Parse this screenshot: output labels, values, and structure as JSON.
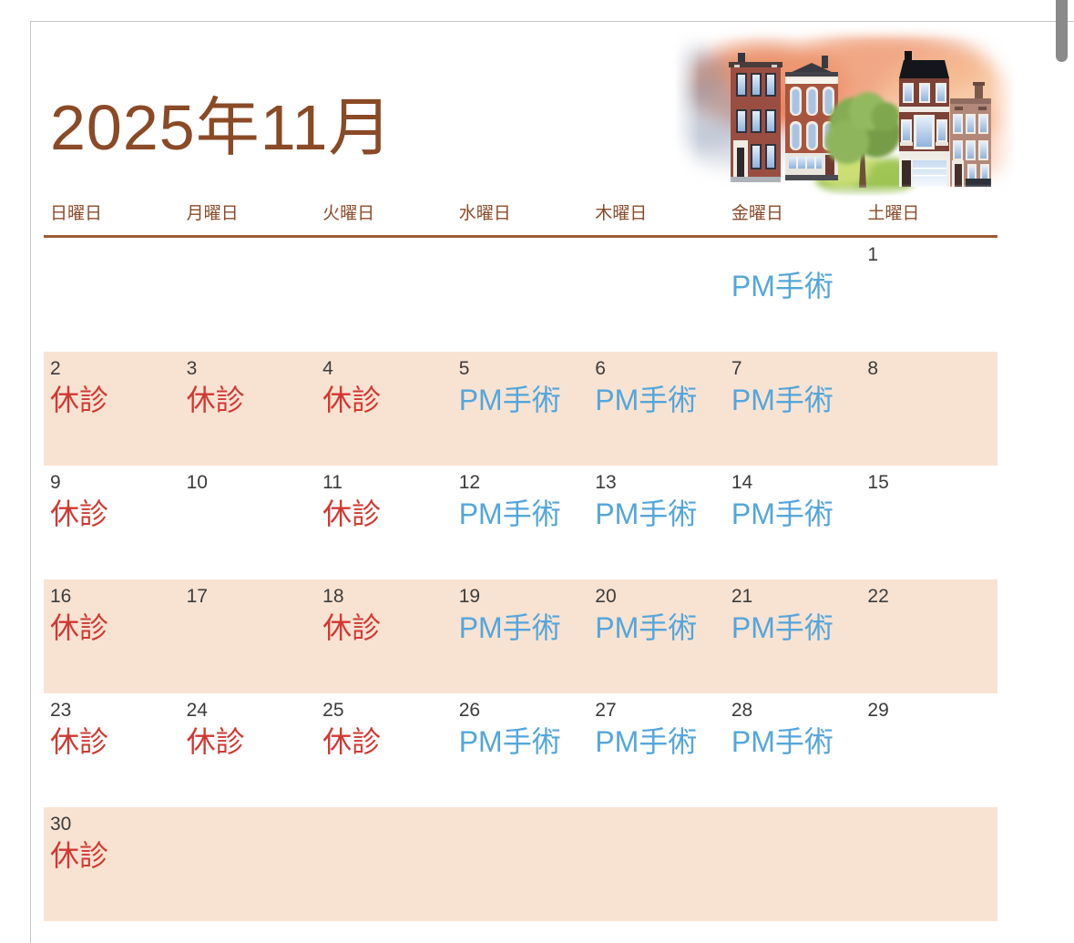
{
  "page": {
    "title": "2025年11月"
  },
  "weekday_headers": [
    "日曜日",
    "月曜日",
    "火曜日",
    "水曜日",
    "木曜日",
    "金曜日",
    "土曜日"
  ],
  "calendar": {
    "weeks": [
      {
        "highlighted": false,
        "days": [
          {
            "date": "",
            "note": "",
            "note_type": ""
          },
          {
            "date": "",
            "note": "",
            "note_type": ""
          },
          {
            "date": "",
            "note": "",
            "note_type": ""
          },
          {
            "date": "",
            "note": "",
            "note_type": ""
          },
          {
            "date": "",
            "note": "",
            "note_type": ""
          },
          {
            "date": "",
            "note": "PM手術",
            "note_type": "surgery"
          },
          {
            "date": "1",
            "note": "",
            "note_type": ""
          }
        ]
      },
      {
        "highlighted": true,
        "days": [
          {
            "date": "2",
            "note": "休診",
            "note_type": "closed"
          },
          {
            "date": "3",
            "note": "休診",
            "note_type": "closed"
          },
          {
            "date": "4",
            "note": "休診",
            "note_type": "closed"
          },
          {
            "date": "5",
            "note": "PM手術",
            "note_type": "surgery"
          },
          {
            "date": "6",
            "note": "PM手術",
            "note_type": "surgery"
          },
          {
            "date": "7",
            "note": "PM手術",
            "note_type": "surgery"
          },
          {
            "date": "8",
            "note": "",
            "note_type": ""
          }
        ]
      },
      {
        "highlighted": false,
        "days": [
          {
            "date": "9",
            "note": "休診",
            "note_type": "closed"
          },
          {
            "date": "10",
            "note": "",
            "note_type": ""
          },
          {
            "date": "11",
            "note": "休診",
            "note_type": "closed"
          },
          {
            "date": "12",
            "note": "PM手術",
            "note_type": "surgery"
          },
          {
            "date": "13",
            "note": "PM手術",
            "note_type": "surgery"
          },
          {
            "date": "14",
            "note": "PM手術",
            "note_type": "surgery"
          },
          {
            "date": "15",
            "note": "",
            "note_type": ""
          }
        ]
      },
      {
        "highlighted": true,
        "days": [
          {
            "date": "16",
            "note": "休診",
            "note_type": "closed"
          },
          {
            "date": "17",
            "note": "",
            "note_type": ""
          },
          {
            "date": "18",
            "note": "休診",
            "note_type": "closed"
          },
          {
            "date": "19",
            "note": "PM手術",
            "note_type": "surgery"
          },
          {
            "date": "20",
            "note": "PM手術",
            "note_type": "surgery"
          },
          {
            "date": "21",
            "note": "PM手術",
            "note_type": "surgery"
          },
          {
            "date": "22",
            "note": "",
            "note_type": ""
          }
        ]
      },
      {
        "highlighted": false,
        "days": [
          {
            "date": "23",
            "note": "休診",
            "note_type": "closed"
          },
          {
            "date": "24",
            "note": "休診",
            "note_type": "closed"
          },
          {
            "date": "25",
            "note": "休診",
            "note_type": "closed"
          },
          {
            "date": "26",
            "note": "PM手術",
            "note_type": "surgery"
          },
          {
            "date": "27",
            "note": "PM手術",
            "note_type": "surgery"
          },
          {
            "date": "28",
            "note": "PM手術",
            "note_type": "surgery"
          },
          {
            "date": "29",
            "note": "",
            "note_type": ""
          }
        ]
      },
      {
        "highlighted": true,
        "days": [
          {
            "date": "30",
            "note": "休診",
            "note_type": "closed"
          },
          {
            "date": "",
            "note": "",
            "note_type": ""
          },
          {
            "date": "",
            "note": "",
            "note_type": ""
          },
          {
            "date": "",
            "note": "",
            "note_type": ""
          },
          {
            "date": "",
            "note": "",
            "note_type": ""
          },
          {
            "date": "",
            "note": "",
            "note_type": ""
          },
          {
            "date": "",
            "note": "",
            "note_type": ""
          }
        ]
      }
    ]
  },
  "colors": {
    "title_brown": "#8a4a26",
    "weekday_brown": "#8a4b28",
    "rule_brown": "#9c5c33",
    "closed_red": "#d23831",
    "surgery_blue": "#54a6db",
    "highlight_row_bg": "#f8e3d3"
  },
  "illustration": {
    "name": "row-houses-sunset-illustration"
  }
}
